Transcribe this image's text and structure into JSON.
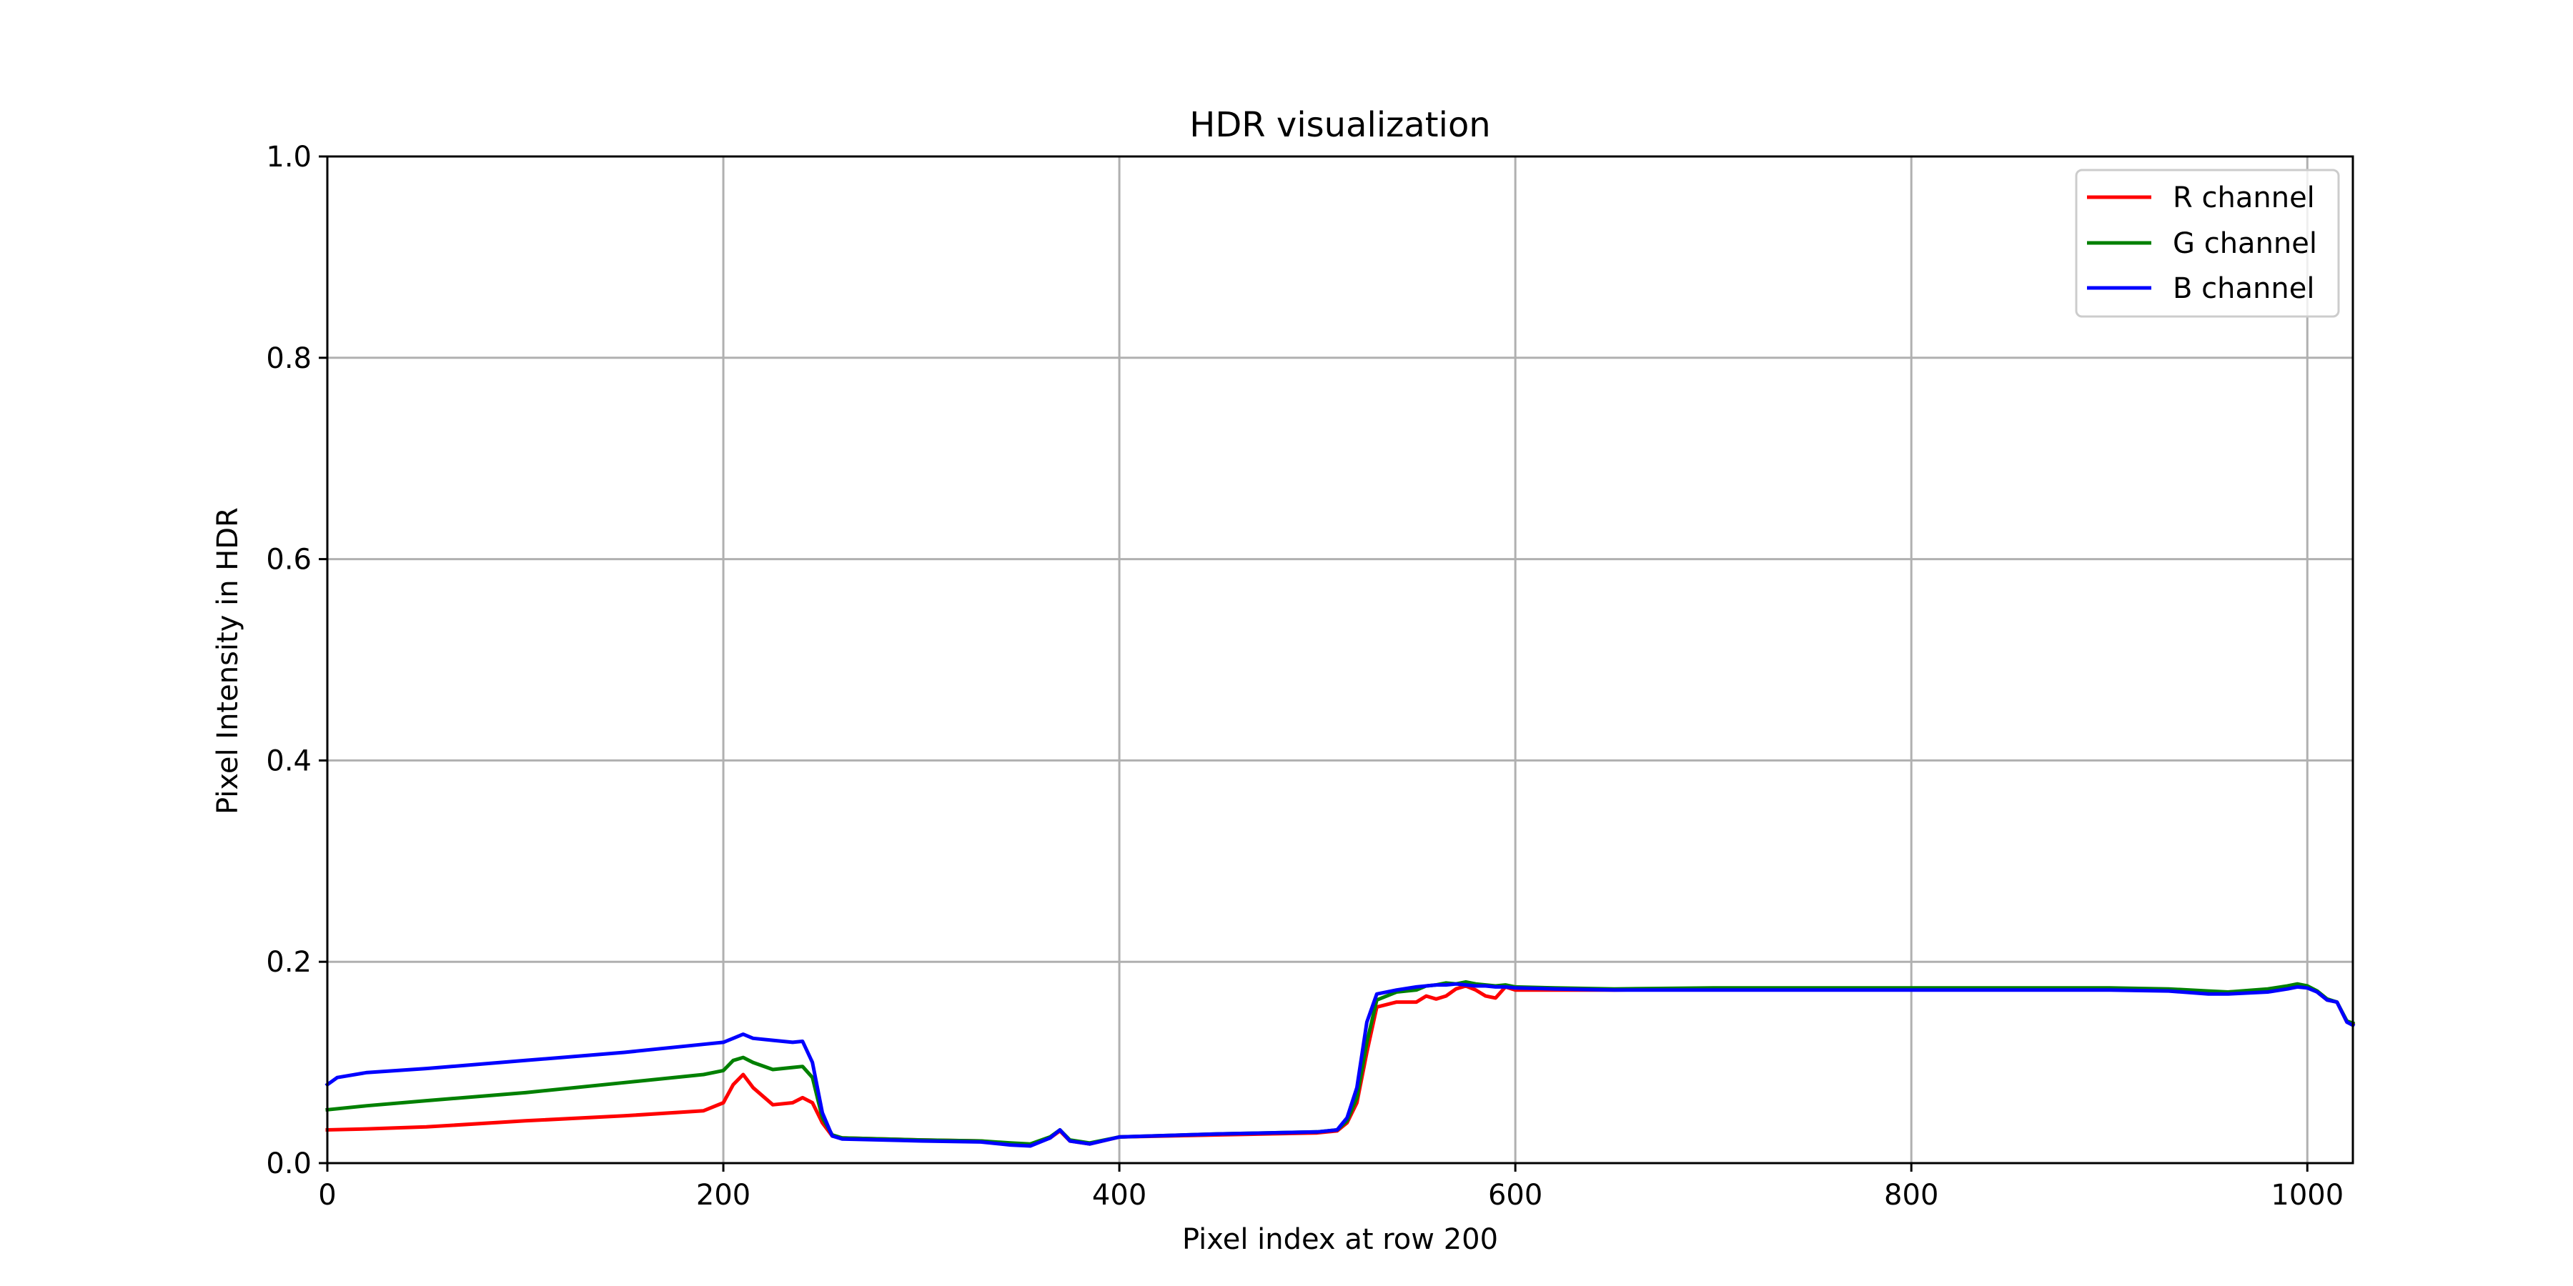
{
  "chart_data": {
    "type": "line",
    "title": "HDR visualization",
    "xlabel": "Pixel index at row 200",
    "ylabel": "Pixel Intensity in HDR",
    "xlim": [
      0,
      1023
    ],
    "ylim": [
      0,
      1.0
    ],
    "xticks": [
      0,
      200,
      400,
      600,
      800,
      1000
    ],
    "yticks": [
      0.0,
      0.2,
      0.4,
      0.6,
      0.8,
      1.0
    ],
    "xtick_labels": [
      "0",
      "200",
      "400",
      "600",
      "800",
      "1000"
    ],
    "ytick_labels": [
      "0.0",
      "0.2",
      "0.4",
      "0.6",
      "0.8",
      "1.0"
    ],
    "grid": true,
    "legend_position": "top-right",
    "series": [
      {
        "name": "R channel",
        "color": "#ff0000",
        "x": [
          0,
          20,
          50,
          100,
          150,
          190,
          200,
          205,
          210,
          215,
          225,
          235,
          240,
          245,
          250,
          255,
          260,
          300,
          330,
          345,
          355,
          365,
          370,
          375,
          385,
          400,
          450,
          500,
          510,
          515,
          520,
          525,
          530,
          540,
          550,
          555,
          560,
          565,
          570,
          575,
          580,
          585,
          590,
          595,
          600,
          620,
          650,
          700,
          800,
          900,
          930,
          950,
          960,
          980,
          990,
          995,
          1000,
          1005,
          1010,
          1015,
          1020,
          1023
        ],
        "y": [
          0.033,
          0.034,
          0.036,
          0.042,
          0.047,
          0.052,
          0.06,
          0.078,
          0.088,
          0.075,
          0.058,
          0.06,
          0.065,
          0.06,
          0.04,
          0.027,
          0.025,
          0.023,
          0.022,
          0.019,
          0.018,
          0.025,
          0.032,
          0.022,
          0.019,
          0.026,
          0.028,
          0.03,
          0.032,
          0.04,
          0.06,
          0.11,
          0.155,
          0.16,
          0.16,
          0.166,
          0.163,
          0.166,
          0.173,
          0.176,
          0.172,
          0.166,
          0.164,
          0.175,
          0.172,
          0.172,
          0.172,
          0.173,
          0.173,
          0.173,
          0.172,
          0.17,
          0.17,
          0.172,
          0.175,
          0.176,
          0.175,
          0.17,
          0.162,
          0.16,
          0.14,
          0.138
        ]
      },
      {
        "name": "G channel",
        "color": "#008000",
        "x": [
          0,
          20,
          50,
          100,
          150,
          190,
          200,
          205,
          210,
          215,
          225,
          235,
          240,
          245,
          250,
          255,
          260,
          300,
          330,
          345,
          355,
          365,
          370,
          375,
          385,
          400,
          450,
          500,
          510,
          515,
          520,
          525,
          530,
          540,
          550,
          555,
          560,
          565,
          570,
          575,
          580,
          585,
          590,
          595,
          600,
          620,
          650,
          700,
          800,
          900,
          930,
          950,
          960,
          980,
          990,
          995,
          1000,
          1005,
          1010,
          1015,
          1020,
          1023
        ],
        "y": [
          0.053,
          0.057,
          0.062,
          0.07,
          0.08,
          0.088,
          0.092,
          0.102,
          0.105,
          0.1,
          0.093,
          0.095,
          0.096,
          0.085,
          0.045,
          0.028,
          0.025,
          0.023,
          0.022,
          0.02,
          0.019,
          0.026,
          0.033,
          0.023,
          0.02,
          0.026,
          0.029,
          0.031,
          0.033,
          0.042,
          0.065,
          0.12,
          0.162,
          0.17,
          0.172,
          0.176,
          0.177,
          0.179,
          0.178,
          0.18,
          0.178,
          0.177,
          0.176,
          0.177,
          0.175,
          0.174,
          0.173,
          0.174,
          0.174,
          0.174,
          0.173,
          0.171,
          0.17,
          0.173,
          0.176,
          0.178,
          0.176,
          0.171,
          0.163,
          0.16,
          0.141,
          0.139
        ]
      },
      {
        "name": "B channel",
        "color": "#0000ff",
        "x": [
          0,
          5,
          20,
          50,
          100,
          150,
          190,
          200,
          205,
          210,
          215,
          225,
          235,
          240,
          245,
          250,
          255,
          260,
          300,
          330,
          345,
          355,
          365,
          370,
          375,
          385,
          400,
          450,
          500,
          510,
          515,
          520,
          525,
          530,
          540,
          550,
          555,
          560,
          565,
          570,
          575,
          580,
          585,
          590,
          595,
          600,
          620,
          650,
          700,
          800,
          900,
          930,
          950,
          960,
          980,
          990,
          995,
          1000,
          1005,
          1010,
          1015,
          1020,
          1023
        ],
        "y": [
          0.078,
          0.085,
          0.09,
          0.094,
          0.102,
          0.11,
          0.118,
          0.12,
          0.124,
          0.128,
          0.124,
          0.122,
          0.12,
          0.121,
          0.1,
          0.05,
          0.027,
          0.024,
          0.022,
          0.021,
          0.018,
          0.017,
          0.025,
          0.033,
          0.022,
          0.019,
          0.026,
          0.029,
          0.031,
          0.033,
          0.045,
          0.075,
          0.14,
          0.168,
          0.172,
          0.175,
          0.176,
          0.177,
          0.177,
          0.178,
          0.177,
          0.176,
          0.176,
          0.175,
          0.175,
          0.174,
          0.173,
          0.172,
          0.172,
          0.172,
          0.172,
          0.171,
          0.168,
          0.168,
          0.17,
          0.173,
          0.175,
          0.174,
          0.17,
          0.162,
          0.16,
          0.14,
          0.137
        ]
      }
    ]
  }
}
